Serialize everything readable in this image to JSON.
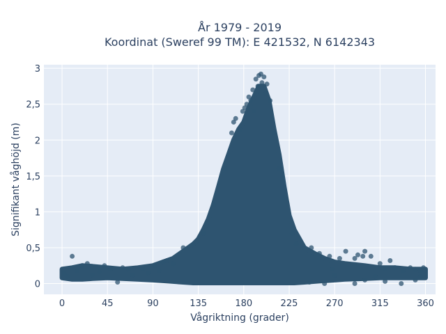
{
  "chart_data": {
    "type": "scatter",
    "title_line1": "År 1979 - 2019",
    "title_line2": "Koordinat (Sweref 99 TM): E 421532, N 6142343",
    "xlabel": "Vågriktning (grader)",
    "ylabel": "Signifikant våghöjd (m)",
    "xlim": [
      -18,
      370
    ],
    "ylim": [
      -0.15,
      3.05
    ],
    "xticks": [
      0,
      45,
      90,
      135,
      180,
      225,
      270,
      315,
      360
    ],
    "xtick_labels": [
      "0",
      "45",
      "90",
      "135",
      "180",
      "225",
      "270",
      "315",
      "360"
    ],
    "yticks": [
      0,
      0.5,
      1,
      1.5,
      2,
      2.5,
      3
    ],
    "ytick_labels": [
      "0",
      "0,5",
      "1",
      "1,5",
      "2",
      "2,5",
      "3"
    ],
    "grid": true,
    "legend": "none",
    "colors": {
      "plot_bg": "#e5ecf6",
      "grid": "#ffffff",
      "marker": "#2e5470"
    },
    "envelope": {
      "x": [
        0,
        10,
        20,
        30,
        45,
        60,
        75,
        90,
        100,
        110,
        120,
        130,
        135,
        140,
        145,
        150,
        155,
        160,
        165,
        170,
        175,
        180,
        185,
        190,
        195,
        200,
        205,
        210,
        215,
        220,
        225,
        230,
        240,
        250,
        260,
        270,
        280,
        300,
        315,
        330,
        345,
        360
      ],
      "upper": [
        0.2,
        0.22,
        0.25,
        0.24,
        0.22,
        0.2,
        0.22,
        0.25,
        0.3,
        0.35,
        0.45,
        0.55,
        0.62,
        0.75,
        0.9,
        1.1,
        1.35,
        1.6,
        1.8,
        2.0,
        2.15,
        2.25,
        2.45,
        2.6,
        2.75,
        2.75,
        2.55,
        2.15,
        1.8,
        1.35,
        0.95,
        0.75,
        0.5,
        0.42,
        0.35,
        0.3,
        0.28,
        0.25,
        0.22,
        0.22,
        0.2,
        0.2
      ],
      "lower": [
        0.08,
        0.06,
        0.06,
        0.07,
        0.08,
        0.07,
        0.06,
        0.05,
        0.04,
        0.03,
        0.02,
        0.01,
        0.01,
        0.01,
        0.01,
        0.01,
        0.01,
        0.01,
        0.01,
        0.01,
        0.01,
        0.01,
        0.01,
        0.01,
        0.01,
        0.01,
        0.01,
        0.01,
        0.01,
        0.01,
        0.01,
        0.01,
        0.02,
        0.03,
        0.04,
        0.05,
        0.06,
        0.07,
        0.08,
        0.08,
        0.08,
        0.08
      ]
    },
    "points": [
      [
        10,
        0.38
      ],
      [
        20,
        0.25
      ],
      [
        25,
        0.28
      ],
      [
        42,
        0.25
      ],
      [
        55,
        0.02
      ],
      [
        60,
        0.22
      ],
      [
        66,
        0.2
      ],
      [
        80,
        0.2
      ],
      [
        92,
        0.25
      ],
      [
        100,
        0.3
      ],
      [
        104,
        0.32
      ],
      [
        110,
        0.28
      ],
      [
        120,
        0.5
      ],
      [
        130,
        0.55
      ],
      [
        140,
        0.7
      ],
      [
        150,
        1.1
      ],
      [
        162,
        1.6
      ],
      [
        168,
        2.1
      ],
      [
        170,
        2.25
      ],
      [
        172,
        2.3
      ],
      [
        176,
        2.15
      ],
      [
        179,
        2.4
      ],
      [
        181,
        2.45
      ],
      [
        183,
        2.5
      ],
      [
        185,
        2.6
      ],
      [
        187,
        2.55
      ],
      [
        189,
        2.7
      ],
      [
        190,
        2.4
      ],
      [
        192,
        2.85
      ],
      [
        194,
        2.75
      ],
      [
        195,
        2.9
      ],
      [
        197,
        2.92
      ],
      [
        198,
        2.8
      ],
      [
        200,
        2.88
      ],
      [
        202,
        2.65
      ],
      [
        203,
        2.78
      ],
      [
        206,
        2.55
      ],
      [
        210,
        2.1
      ],
      [
        215,
        1.6
      ],
      [
        220,
        1.2
      ],
      [
        228,
        0.7
      ],
      [
        232,
        0.55
      ],
      [
        240,
        0.5
      ],
      [
        247,
        0.5
      ],
      [
        255,
        0.42
      ],
      [
        265,
        0.38
      ],
      [
        268,
        0.2
      ],
      [
        270,
        0.12
      ],
      [
        275,
        0.35
      ],
      [
        281,
        0.45
      ],
      [
        290,
        0.35
      ],
      [
        293,
        0.4
      ],
      [
        298,
        0.38
      ],
      [
        300,
        0.45
      ],
      [
        306,
        0.38
      ],
      [
        310,
        0.1
      ],
      [
        315,
        0.28
      ],
      [
        320,
        0.2
      ],
      [
        325,
        0.32
      ],
      [
        330,
        0.22
      ],
      [
        338,
        0.18
      ],
      [
        345,
        0.22
      ],
      [
        350,
        0.2
      ],
      [
        355,
        0.18
      ],
      [
        358,
        0.22
      ],
      [
        300,
        0.05
      ],
      [
        320,
        0.03
      ],
      [
        336,
        0.0
      ],
      [
        350,
        0.05
      ],
      [
        245,
        0.02
      ],
      [
        260,
        0.0
      ],
      [
        290,
        0.0
      ],
      [
        5,
        0.1
      ],
      [
        2,
        0.14
      ],
      [
        15,
        0.17
      ],
      [
        30,
        0.12
      ],
      [
        37,
        0.16
      ],
      [
        48,
        0.2
      ],
      [
        70,
        0.12
      ],
      [
        85,
        0.15
      ],
      [
        96,
        0.18
      ],
      [
        355,
        0.1
      ]
    ]
  }
}
